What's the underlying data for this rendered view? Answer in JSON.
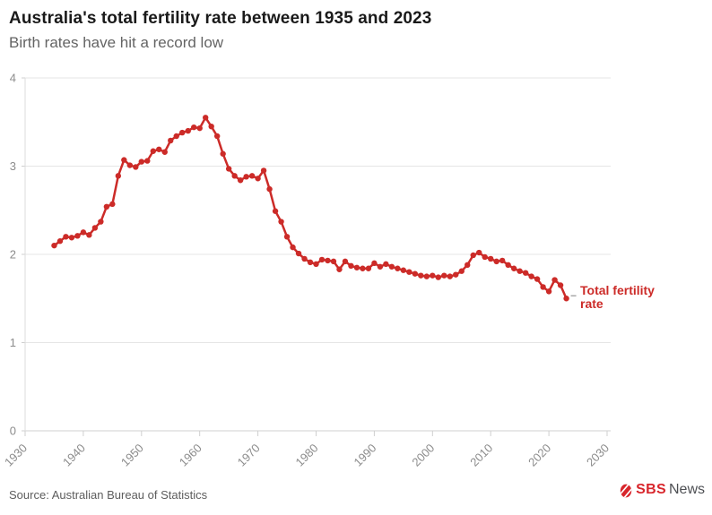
{
  "header": {
    "title": "Australia's total fertility rate between 1935 and 2023",
    "subtitle": "Birth rates have hit a record low"
  },
  "chart_data": {
    "type": "line",
    "title": "Australia's total fertility rate between 1935 and 2023",
    "subtitle": "Birth rates have hit a record low",
    "xlabel": "",
    "ylabel": "",
    "xlim": [
      1930,
      2030
    ],
    "ylim": [
      0,
      4
    ],
    "x_ticks": [
      1930,
      1940,
      1950,
      1960,
      1970,
      1980,
      1990,
      2000,
      2010,
      2020,
      2030
    ],
    "y_ticks": [
      0,
      1,
      2,
      3,
      4
    ],
    "grid": "horizontal",
    "legend_position": "end-of-line-label",
    "line_color": "#cc2b28",
    "marker": "circle",
    "series": [
      {
        "name": "Total fertility rate",
        "x": [
          1935,
          1936,
          1937,
          1938,
          1939,
          1940,
          1941,
          1942,
          1943,
          1944,
          1945,
          1946,
          1947,
          1948,
          1949,
          1950,
          1951,
          1952,
          1953,
          1954,
          1955,
          1956,
          1957,
          1958,
          1959,
          1960,
          1961,
          1962,
          1963,
          1964,
          1965,
          1966,
          1967,
          1968,
          1969,
          1970,
          1971,
          1972,
          1973,
          1974,
          1975,
          1976,
          1977,
          1978,
          1979,
          1980,
          1981,
          1982,
          1983,
          1984,
          1985,
          1986,
          1987,
          1988,
          1989,
          1990,
          1991,
          1992,
          1993,
          1994,
          1995,
          1996,
          1997,
          1998,
          1999,
          2000,
          2001,
          2002,
          2003,
          2004,
          2005,
          2006,
          2007,
          2008,
          2009,
          2010,
          2011,
          2012,
          2013,
          2014,
          2015,
          2016,
          2017,
          2018,
          2019,
          2020,
          2021,
          2022,
          2023
        ],
        "values": [
          2.1,
          2.15,
          2.2,
          2.19,
          2.21,
          2.25,
          2.22,
          2.3,
          2.37,
          2.54,
          2.57,
          2.89,
          3.07,
          3.01,
          2.99,
          3.05,
          3.06,
          3.17,
          3.19,
          3.16,
          3.29,
          3.34,
          3.38,
          3.4,
          3.44,
          3.43,
          3.55,
          3.45,
          3.34,
          3.14,
          2.97,
          2.89,
          2.84,
          2.88,
          2.89,
          2.86,
          2.95,
          2.74,
          2.49,
          2.37,
          2.2,
          2.08,
          2.01,
          1.95,
          1.91,
          1.89,
          1.94,
          1.93,
          1.92,
          1.83,
          1.92,
          1.87,
          1.85,
          1.84,
          1.84,
          1.9,
          1.86,
          1.89,
          1.86,
          1.84,
          1.82,
          1.8,
          1.78,
          1.76,
          1.75,
          1.76,
          1.74,
          1.76,
          1.75,
          1.77,
          1.81,
          1.88,
          1.99,
          2.02,
          1.97,
          1.95,
          1.92,
          1.93,
          1.88,
          1.84,
          1.81,
          1.79,
          1.75,
          1.72,
          1.63,
          1.58,
          1.71,
          1.65,
          1.5
        ]
      }
    ]
  },
  "footer": {
    "source": "Source: Australian Bureau of Statistics",
    "logo_sbs": "SBS",
    "logo_news": "News"
  }
}
